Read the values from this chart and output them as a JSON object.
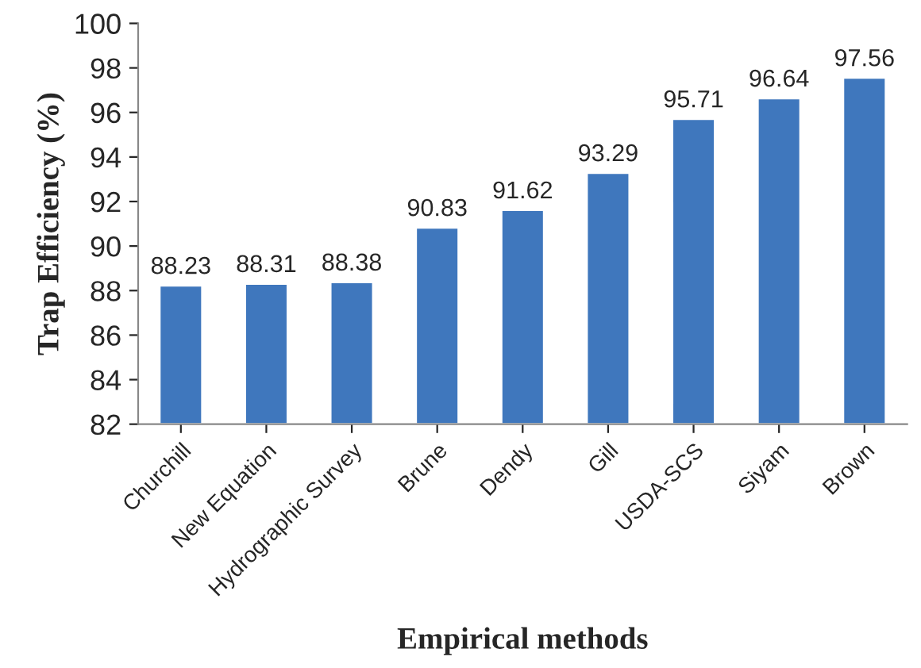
{
  "chart_data": {
    "type": "bar",
    "xlabel": "Empirical methods",
    "ylabel": "Trap Efficiency (%)",
    "categories": [
      "Churchill",
      "New Equation",
      "Hydrographic Survey",
      "Brune",
      "Dendy",
      "Gill",
      "USDA-SCS",
      "Siyam",
      "Brown"
    ],
    "values": [
      88.23,
      88.31,
      88.38,
      90.83,
      91.62,
      93.29,
      95.71,
      96.64,
      97.56
    ],
    "color": "#3f77bd",
    "ylim": [
      82,
      100
    ],
    "yticks": [
      82,
      84,
      86,
      88,
      90,
      92,
      94,
      96,
      98,
      100
    ],
    "data_labels": true,
    "grid": false,
    "legend": false
  }
}
